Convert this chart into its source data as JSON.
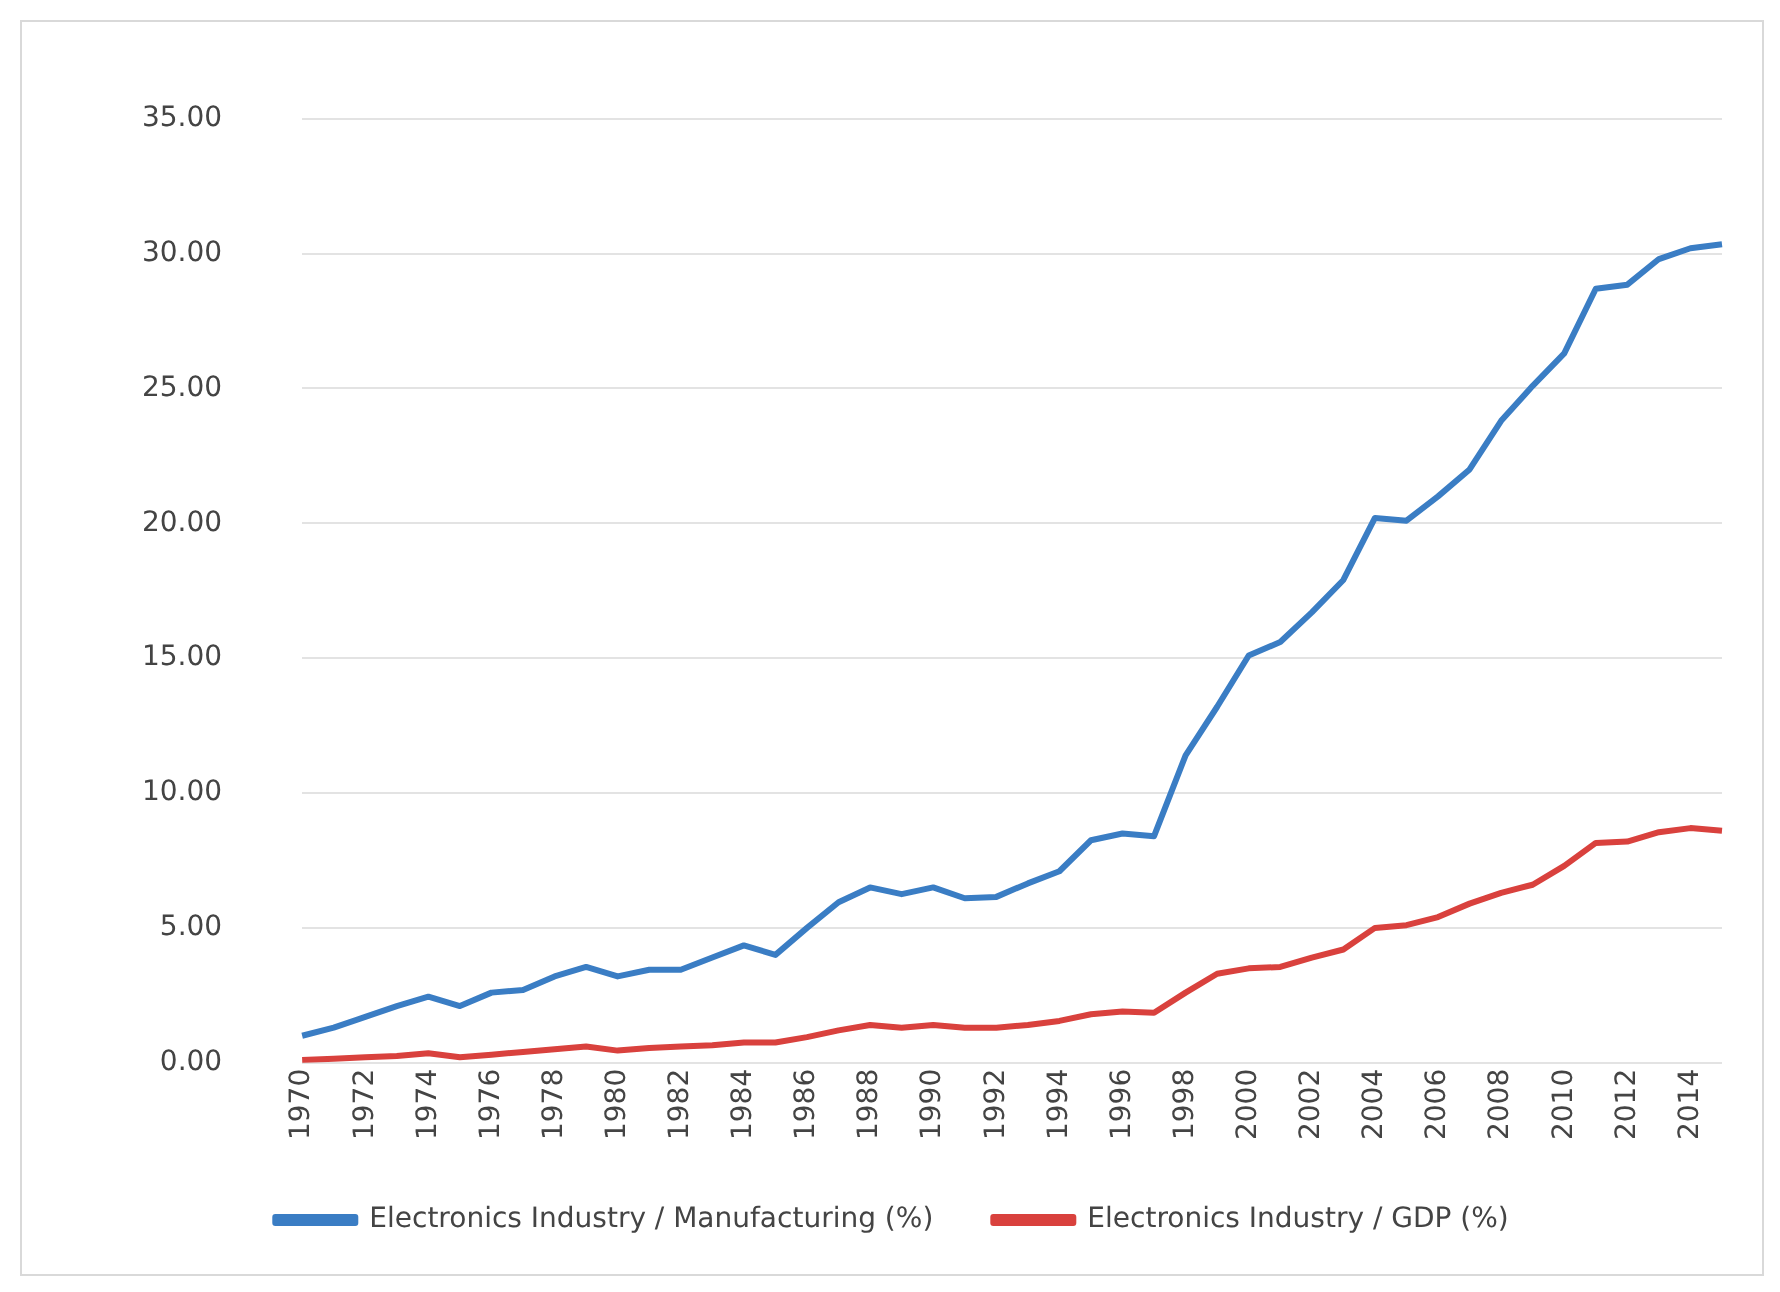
{
  "chart_data": {
    "type": "line",
    "categories": [
      "1970",
      null,
      "1972",
      null,
      "1974",
      null,
      "1976",
      null,
      "1978",
      null,
      "1980",
      null,
      "1982",
      null,
      "1984",
      null,
      "1986",
      null,
      "1988",
      null,
      "1990",
      null,
      "1992",
      null,
      "1994",
      null,
      "1996",
      null,
      "1998",
      null,
      "2000",
      null,
      "2002",
      null,
      "2004",
      null,
      "2006",
      null,
      "2008",
      null,
      "2010",
      null,
      "2012",
      null,
      "2014",
      null
    ],
    "series": [
      {
        "name": "Electronics Industry / Manufacturing (%)",
        "color": "#3a7dc4",
        "values": [
          1.0,
          1.3,
          1.7,
          2.1,
          2.45,
          2.1,
          2.6,
          2.7,
          3.2,
          3.55,
          3.2,
          3.45,
          3.45,
          3.9,
          4.35,
          4.0,
          5.0,
          5.95,
          6.5,
          6.25,
          6.5,
          6.1,
          6.15,
          6.65,
          7.1,
          8.25,
          8.5,
          8.4,
          11.4,
          13.2,
          15.1,
          15.6,
          16.7,
          17.9,
          20.2,
          20.1,
          21.0,
          22.0,
          23.8,
          25.1,
          26.3,
          28.7,
          28.85,
          29.8,
          30.2,
          30.35
        ]
      },
      {
        "name": "Electronics Industry / GDP (%)",
        "color": "#d9413d",
        "values": [
          0.1,
          0.15,
          0.2,
          0.25,
          0.35,
          0.2,
          0.3,
          0.4,
          0.5,
          0.6,
          0.45,
          0.55,
          0.6,
          0.65,
          0.75,
          0.75,
          0.95,
          1.2,
          1.4,
          1.3,
          1.4,
          1.3,
          1.3,
          1.4,
          1.55,
          1.8,
          1.9,
          1.85,
          2.6,
          3.3,
          3.5,
          3.55,
          3.9,
          4.2,
          5.0,
          5.1,
          5.4,
          5.9,
          6.3,
          6.6,
          7.3,
          8.15,
          8.2,
          8.55,
          8.7,
          8.6
        ]
      }
    ],
    "ylim": [
      0,
      35
    ],
    "yticks": [
      {
        "value": 0,
        "label": "0.00"
      },
      {
        "value": 5,
        "label": "5.00"
      },
      {
        "value": 10,
        "label": "10.00"
      },
      {
        "value": 15,
        "label": "15.00"
      },
      {
        "value": 20,
        "label": "20.00"
      },
      {
        "value": 25,
        "label": "25.00"
      },
      {
        "value": 30,
        "label": "30.00"
      },
      {
        "value": 35,
        "label": "35.00"
      }
    ],
    "grid": "y",
    "legend": "bottom",
    "marker": "none",
    "line_style": "solid"
  }
}
